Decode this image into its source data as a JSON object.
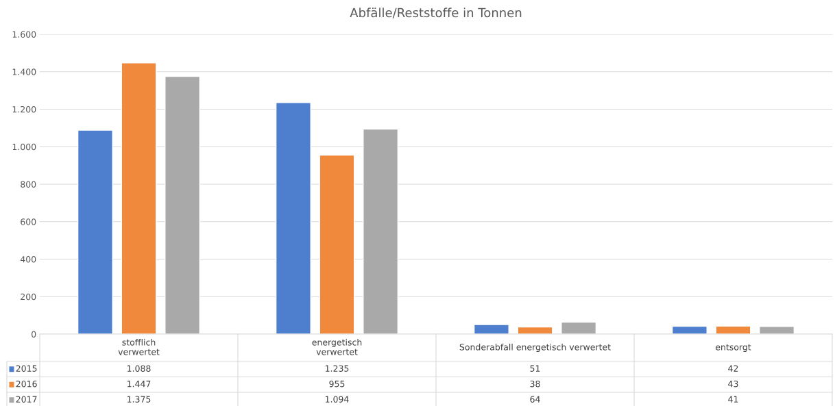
{
  "chart_data": {
    "type": "bar",
    "title": "Abfälle/Reststoffe in Tonnen",
    "categories": [
      "stofflich\nverwertet",
      "energetisch\nverwertet",
      "Sonderabfall energetisch verwertet",
      "entsorgt"
    ],
    "series": [
      {
        "name": "2015",
        "color": "#4e7fce",
        "values": [
          1088,
          1235,
          51,
          42
        ],
        "value_labels": [
          "1.088",
          "1.235",
          "51",
          "42"
        ]
      },
      {
        "name": "2016",
        "color": "#f0893b",
        "values": [
          1447,
          955,
          38,
          43
        ],
        "value_labels": [
          "1.447",
          "955",
          "38",
          "43"
        ]
      },
      {
        "name": "2017",
        "color": "#a9a9a9",
        "values": [
          1375,
          1094,
          64,
          41
        ],
        "value_labels": [
          "1.375",
          "1.094",
          "64",
          "41"
        ]
      }
    ],
    "ylim": [
      0,
      1600
    ],
    "yticks": [
      0,
      {
        "value": 200,
        "label": "200"
      },
      {
        "value": 400,
        "label": "400"
      },
      {
        "value": 600,
        "label": "600"
      },
      {
        "value": 800,
        "label": "800"
      },
      {
        "value": 1000,
        "label": "1.000"
      },
      {
        "value": 1200,
        "label": "1.200"
      },
      {
        "value": 1400,
        "label": "1.400"
      },
      {
        "value": 1600,
        "label": "1.600"
      }
    ],
    "grid": "y",
    "legend": "bottom"
  }
}
